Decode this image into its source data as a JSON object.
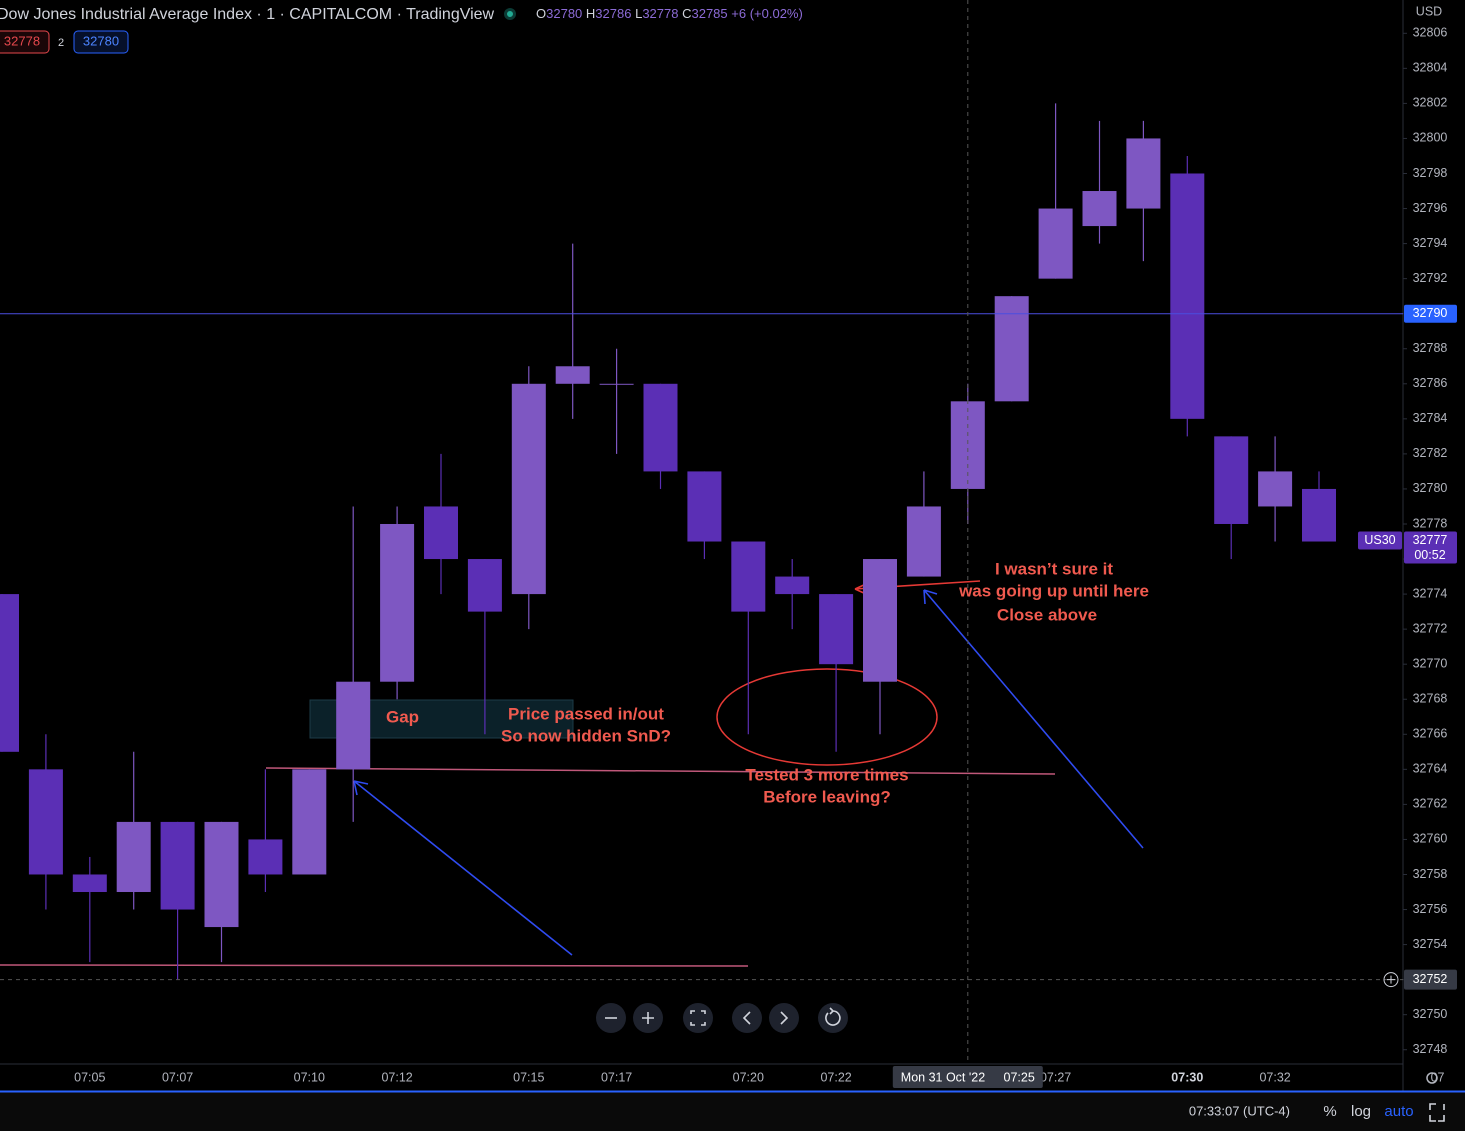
{
  "header": {
    "title": "Dow Jones Industrial Average Index · 1 · CAPITALCOM · TradingView",
    "ohlc": [
      {
        "label": "O",
        "value": 32780
      },
      {
        "label": "H",
        "value": 32786
      },
      {
        "label": "L",
        "value": 32778
      },
      {
        "label": "C",
        "value": 32785
      }
    ],
    "change": "+6 (+0.02%)",
    "currency": "USD"
  },
  "trade": {
    "sell": 32778,
    "quantity": 2,
    "buy": 32780
  },
  "chart_data": {
    "type": "candlestick",
    "up_color": "#7e57c2",
    "down_color": "#5b2fb5",
    "categories": [
      null,
      null,
      "07:05",
      null,
      "07:07",
      null,
      null,
      "07:10",
      null,
      "07:12",
      null,
      null,
      "07:15",
      null,
      "07:17",
      null,
      null,
      "07:20",
      null,
      "07:22",
      null,
      null,
      null,
      null,
      "07:27",
      null,
      null,
      "07:30",
      null,
      "07:32",
      null
    ],
    "xtick_cut": "07",
    "open": [
      32774,
      32764,
      32758,
      32757,
      32761,
      32755,
      32760,
      32758,
      32764,
      32769,
      32779,
      32776,
      32774,
      32786,
      32786,
      32786,
      32781,
      32777,
      32775,
      32774,
      32769,
      32775,
      32780,
      32785,
      32792,
      32795,
      32796,
      32798,
      32783,
      32779,
      32780
    ],
    "high": [
      32774,
      32766,
      32759,
      32765,
      32761,
      32761,
      32764,
      32764,
      32779,
      32779,
      32782,
      32776,
      32787,
      32794,
      32788,
      32786,
      32781,
      32777,
      32776,
      32774,
      32776,
      32781,
      32786,
      32791,
      32802,
      32801,
      32801,
      32799,
      32783,
      32783,
      32781
    ],
    "low": [
      32765,
      32756,
      32753,
      32756,
      32752,
      32753,
      32757,
      32758,
      32761,
      32768,
      32774,
      32766,
      32772,
      32784,
      32782,
      32780,
      32776,
      32766,
      32772,
      32765,
      32766,
      32775,
      32778,
      32785,
      32792,
      32794,
      32793,
      32783,
      32776,
      32777,
      32777
    ],
    "close": [
      32765,
      32758,
      32757,
      32761,
      32756,
      32761,
      32758,
      32764,
      32769,
      32778,
      32776,
      32773,
      32786,
      32787,
      32786,
      32781,
      32777,
      32773,
      32774,
      32770,
      32776,
      32779,
      32785,
      32791,
      32796,
      32797,
      32800,
      32784,
      32778,
      32781,
      32777
    ],
    "ylim": [
      32747.3,
      32807.9
    ],
    "yticks": [
      32748,
      32750,
      32752,
      32754,
      32756,
      32758,
      32760,
      32762,
      32764,
      32766,
      32768,
      32770,
      32772,
      32774,
      32776,
      32778,
      32780,
      32782,
      32784,
      32786,
      32788,
      32790,
      32792,
      32794,
      32796,
      32798,
      32800,
      32802,
      32804,
      32806
    ],
    "grid": false,
    "price_line": {
      "value": 32790
    },
    "current": {
      "symbol": "US30",
      "value": 32777,
      "countdown": "00:52"
    },
    "crosshair": {
      "value": 32752,
      "date": "Mon 31 Oct '22",
      "time": "07:25"
    }
  },
  "annotations": {
    "gap": "Gap",
    "passed": [
      "Price passed in/out",
      "So now hidden SnD?"
    ],
    "tested": [
      "Tested 3 more times",
      "Before leaving?"
    ],
    "unsure": [
      "I wasn’t sure it",
      "was going up until here",
      "Close above"
    ]
  },
  "footer": {
    "clock": "07:33:07 (UTC-4)",
    "percent": "%",
    "log": "log",
    "auto": "auto"
  }
}
